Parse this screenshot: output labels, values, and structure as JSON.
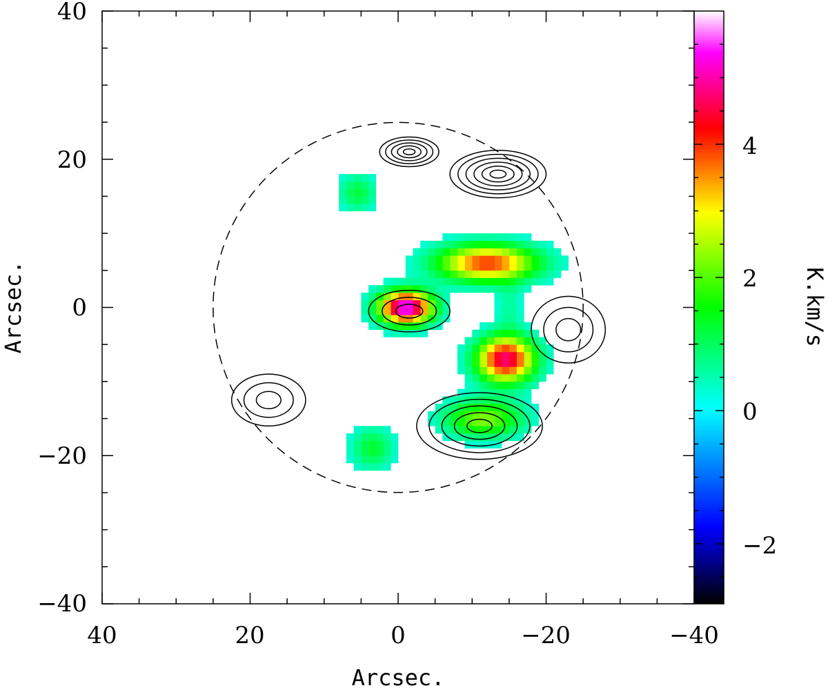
{
  "chart_data": {
    "type": "heatmap",
    "title": "",
    "xlabel": "Arcsec.",
    "ylabel": "Arcsec.",
    "colorbar_label": "K.km/s",
    "xlim": [
      40,
      -40
    ],
    "ylim": [
      -40,
      40
    ],
    "x_ticks": [
      40,
      20,
      0,
      -20,
      -40
    ],
    "y_ticks": [
      40,
      20,
      0,
      -20,
      -40
    ],
    "x_tick_labels": [
      "40",
      "20",
      "0",
      "−20",
      "−40"
    ],
    "y_tick_labels": [
      "40",
      "20",
      "0",
      "−20",
      "−40"
    ],
    "colorbar": {
      "range": [
        -2.9,
        6.0
      ],
      "ticks": [
        4,
        2,
        0,
        -2
      ],
      "tick_labels": [
        "4",
        "2",
        "0",
        "−2"
      ],
      "colors": [
        "#000000",
        "#0000ff",
        "#00ffff",
        "#00ff00",
        "#ffff00",
        "#ff0000",
        "#ff00ff",
        "#ffffff"
      ]
    },
    "emission_sources": [
      {
        "x": -1,
        "y": 0,
        "peak": 5.6,
        "sx": 2.6,
        "sy": 1.6
      },
      {
        "x": -12,
        "y": 6,
        "peak": 4.0,
        "sx": 4.8,
        "sy": 1.8
      },
      {
        "x": -14.5,
        "y": -7,
        "peak": 4.8,
        "sx": 2.8,
        "sy": 2.2
      },
      {
        "x": -11.5,
        "y": -15,
        "peak": 2.3,
        "sx": 3.8,
        "sy": 1.8
      },
      {
        "x": 3.5,
        "y": -19,
        "peak": 1.3,
        "sx": 2.0,
        "sy": 2.0
      },
      {
        "x": 5.5,
        "y": 15.5,
        "peak": 1.2,
        "sx": 1.8,
        "sy": 1.8
      },
      {
        "x": -15,
        "y": 0,
        "peak": 0.6,
        "sx": 1.2,
        "sy": 2.5
      }
    ],
    "contour_sources": [
      {
        "x": -1.5,
        "y": 21,
        "rx": 4.0,
        "ry": 2.0,
        "levels": 5
      },
      {
        "x": -13.5,
        "y": 18,
        "rx": 6.5,
        "ry": 3.2,
        "levels": 6
      },
      {
        "x": -23,
        "y": -3,
        "rx": 5.0,
        "ry": 4.5,
        "levels": 3
      },
      {
        "x": 17.5,
        "y": -12.5,
        "rx": 5.0,
        "ry": 3.5,
        "levels": 3
      },
      {
        "x": -11,
        "y": -16,
        "rx": 8.5,
        "ry": 4.5,
        "levels": 5
      },
      {
        "x": -1.5,
        "y": -0.5,
        "rx": 5.5,
        "ry": 2.8,
        "levels": 3
      }
    ],
    "primary_beam_radius": 25
  }
}
